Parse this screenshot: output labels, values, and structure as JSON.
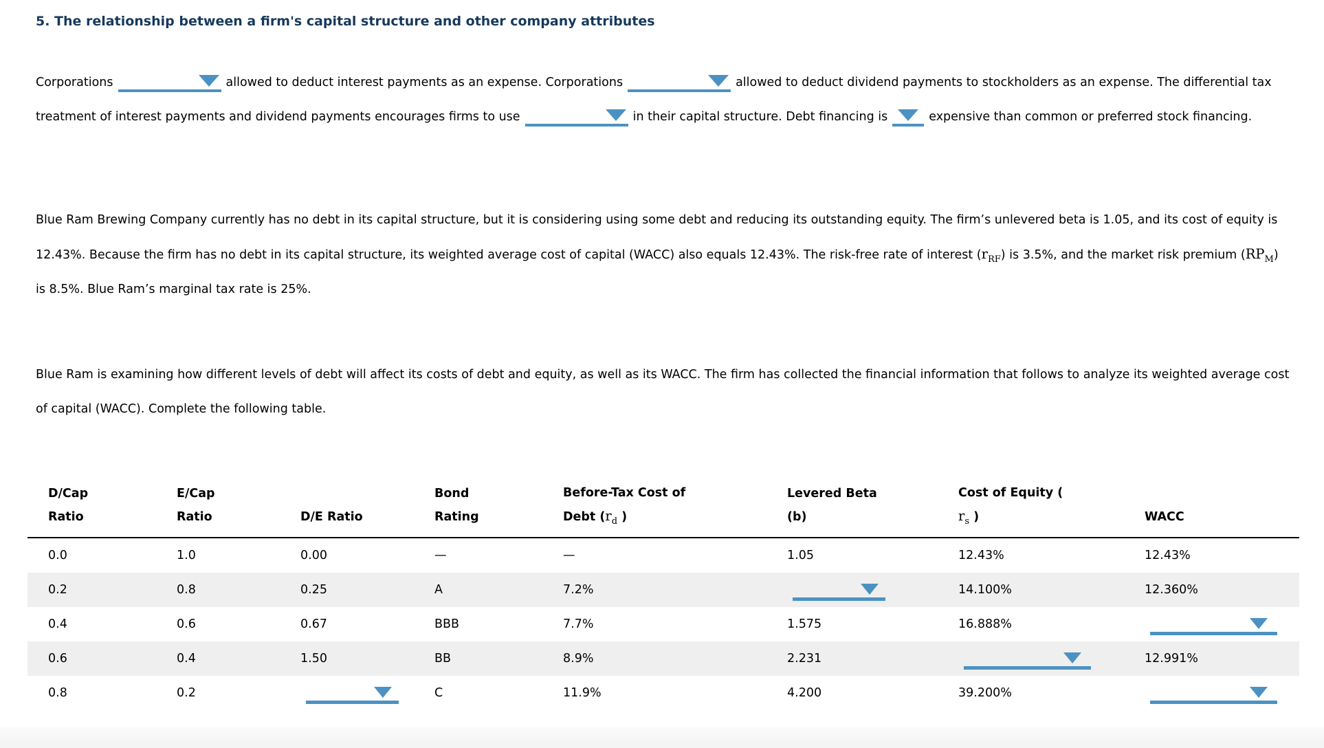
{
  "title": "5. The relationship between a firm's capital structure and other company attributes",
  "intro": {
    "seg1": "Corporations",
    "seg2": "allowed to deduct interest payments as an expense. Corporations",
    "seg3": "allowed to deduct dividend payments to stockholders as an expense. The differential tax treatment of interest payments and dividend payments encourages firms to use",
    "seg4": "in their capital structure. Debt financing is",
    "seg5": "expensive than common or preferred stock financing."
  },
  "scenario": {
    "seg1": "Blue Ram Brewing Company currently has no debt in its capital structure, but it is considering using some debt and reducing its outstanding equity. The firm’s unlevered beta is 1.05, and its cost of equity is 12.43%. Because the firm has no debt in its capital structure, its weighted average cost of capital (WACC) also equals 12.43%. The risk-free rate of interest (",
    "rrf_base": "r",
    "rrf_sub": "RF",
    "seg2": ") is 3.5%, and the market risk premium (",
    "rpm_base": "RP",
    "rpm_sub": "M",
    "seg3": ") is 8.5%. Blue Ram’s marginal tax rate is 25%."
  },
  "instruction": "Blue Ram is examining how different levels of debt will affect its costs of debt and equity, as well as its WACC. The firm has collected the financial information that follows to analyze its weighted average cost of capital (WACC). Complete the following table.",
  "table": {
    "headers": {
      "dcap_l1": "D/Cap",
      "dcap_l2": "Ratio",
      "ecap_l1": "E/Cap",
      "ecap_l2": "Ratio",
      "de": "D/E Ratio",
      "bond_l1": "Bond",
      "bond_l2": "Rating",
      "cost_l1": "Before-Tax Cost of",
      "cost_l2_pre": "Debt (",
      "cost_sym": "r",
      "cost_sub": "d",
      "cost_l2_post": " )",
      "beta_l1": "Levered Beta",
      "beta_l2": "(b)",
      "equity_l1": "Cost of Equity (",
      "equity_sym": "r",
      "equity_sub": "s",
      "equity_l2_post": " )",
      "wacc": "WACC"
    },
    "rows": [
      {
        "dcap": "0.0",
        "ecap": "1.0",
        "de": "0.00",
        "bond": "—",
        "cost": "—",
        "beta": "1.05",
        "equity": "12.43%",
        "wacc": "12.43%"
      },
      {
        "dcap": "0.2",
        "ecap": "0.8",
        "de": "0.25",
        "bond": "A",
        "cost": "7.2%",
        "equity": "14.100%",
        "wacc": "12.360%"
      },
      {
        "dcap": "0.4",
        "ecap": "0.6",
        "de": "0.67",
        "bond": "BBB",
        "cost": "7.7%",
        "beta": "1.575",
        "equity": "16.888%"
      },
      {
        "dcap": "0.6",
        "ecap": "0.4",
        "de": "1.50",
        "bond": "BB",
        "cost": "8.9%",
        "beta": "2.231",
        "wacc": "12.991%"
      },
      {
        "dcap": "0.8",
        "ecap": "0.2",
        "bond": "C",
        "cost": "11.9%",
        "beta": "4.200",
        "equity": "39.200%"
      }
    ]
  },
  "colors": {
    "accent_blue": "#4B92C3",
    "title_navy": "#17395C",
    "stripe_gray": "#EFEFEF"
  }
}
